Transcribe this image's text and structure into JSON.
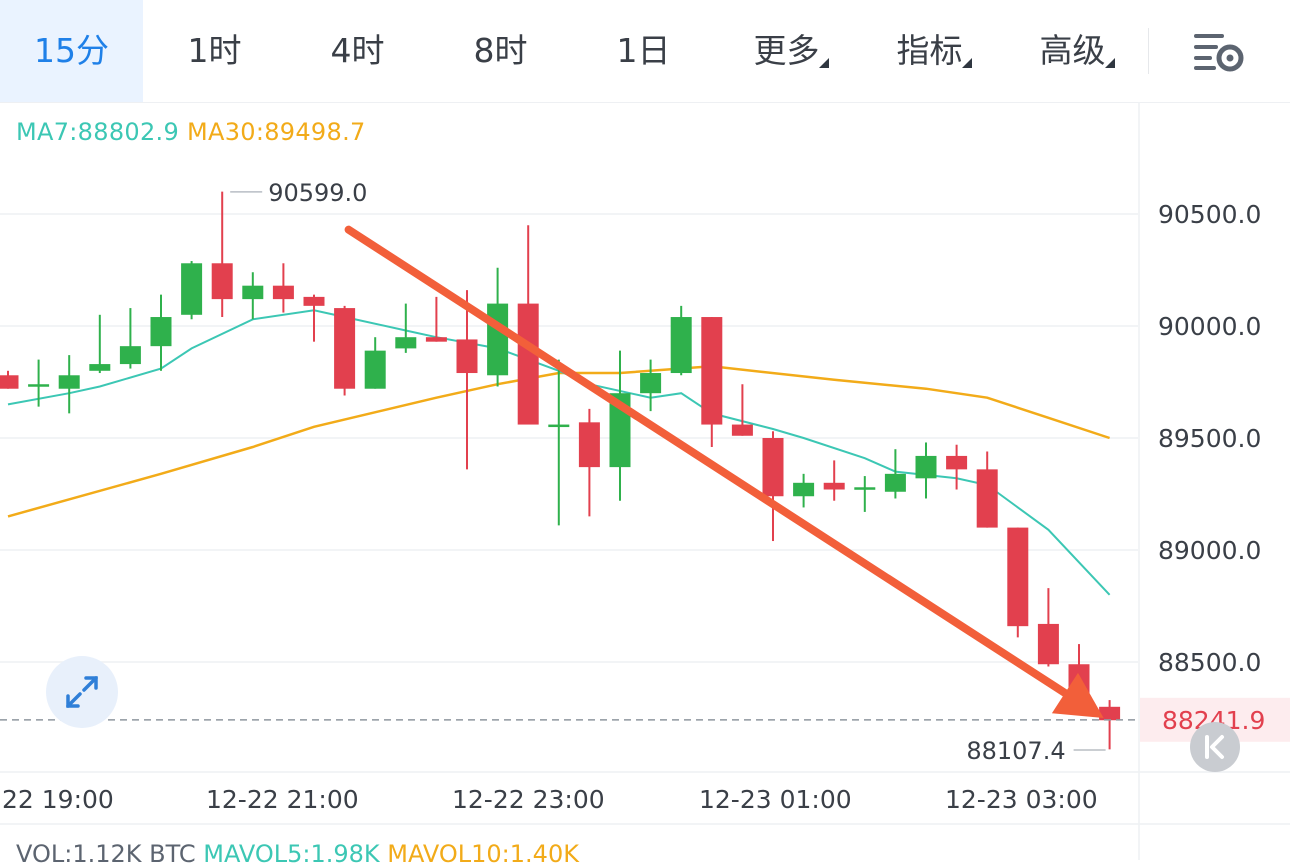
{
  "toolbar": {
    "tabs": [
      {
        "label": "15分",
        "active": true
      },
      {
        "label": "1时",
        "active": false
      },
      {
        "label": "4时",
        "active": false
      },
      {
        "label": "8时",
        "active": false
      },
      {
        "label": "1日",
        "active": false
      },
      {
        "label": "更多",
        "active": false,
        "dropdown": true
      },
      {
        "label": "指标",
        "active": false,
        "dropdown": true
      },
      {
        "label": "高级",
        "active": false,
        "dropdown": true
      }
    ],
    "settings_icon": "chart-settings-icon"
  },
  "ma_legend": {
    "ma7": "MA7:88802.9",
    "ma30": "MA30:89498.7"
  },
  "vol_legend": {
    "vol": "VOL:1.12K BTC",
    "mavol5": "MAVOL5:1.98K",
    "mavol10": "MAVOL10:1.40K"
  },
  "colors": {
    "up": "#2fb14c",
    "down": "#e2404e",
    "ma7": "#3cc7b4",
    "ma30": "#f2ab19",
    "active_tab": "#1f80e8",
    "annotation_arrow": "#f25f3a",
    "current_price_label": "#e2404e"
  },
  "chart_data": {
    "type": "candlestick",
    "interval": "15分",
    "y_ticks": [
      "90500.0",
      "90000.0",
      "89500.0",
      "89000.0",
      "88500.0"
    ],
    "y_tick_values": [
      90500,
      90000,
      89500,
      89000,
      88500
    ],
    "x_ticks": [
      "22 19:00",
      "12-22 21:00",
      "12-22 23:00",
      "12-23 01:00",
      "12-23 03:00"
    ],
    "high_marker": {
      "label": "90599.0",
      "value": 90599.0
    },
    "low_marker": {
      "label": "88107.4",
      "value": 88107.4
    },
    "current_price": {
      "label": "88241.9",
      "value": 88241.9
    },
    "candles": [
      {
        "o": 89780,
        "h": 89800,
        "l": 89720,
        "c": 89720
      },
      {
        "o": 89740,
        "h": 89850,
        "l": 89640,
        "c": 89740
      },
      {
        "o": 89720,
        "h": 89870,
        "l": 89610,
        "c": 89780
      },
      {
        "o": 89800,
        "h": 90050,
        "l": 89790,
        "c": 89830
      },
      {
        "o": 89830,
        "h": 90080,
        "l": 89810,
        "c": 89910
      },
      {
        "o": 89910,
        "h": 90140,
        "l": 89800,
        "c": 90040
      },
      {
        "o": 90050,
        "h": 90290,
        "l": 90030,
        "c": 90280
      },
      {
        "o": 90280,
        "h": 90600,
        "l": 90040,
        "c": 90120
      },
      {
        "o": 90120,
        "h": 90240,
        "l": 90030,
        "c": 90180
      },
      {
        "o": 90180,
        "h": 90280,
        "l": 90060,
        "c": 90120
      },
      {
        "o": 90130,
        "h": 90140,
        "l": 89930,
        "c": 90090
      },
      {
        "o": 90080,
        "h": 90090,
        "l": 89690,
        "c": 89720
      },
      {
        "o": 89720,
        "h": 89950,
        "l": 89720,
        "c": 89890
      },
      {
        "o": 89900,
        "h": 90100,
        "l": 89880,
        "c": 89950
      },
      {
        "o": 89950,
        "h": 90130,
        "l": 89930,
        "c": 89930
      },
      {
        "o": 89940,
        "h": 90160,
        "l": 89360,
        "c": 89790
      },
      {
        "o": 89780,
        "h": 90260,
        "l": 89730,
        "c": 90100
      },
      {
        "o": 90100,
        "h": 90450,
        "l": 89560,
        "c": 89560
      },
      {
        "o": 89560,
        "h": 89850,
        "l": 89110,
        "c": 89560
      },
      {
        "o": 89570,
        "h": 89630,
        "l": 89150,
        "c": 89370
      },
      {
        "o": 89370,
        "h": 89890,
        "l": 89220,
        "c": 89700
      },
      {
        "o": 89700,
        "h": 89850,
        "l": 89620,
        "c": 89790
      },
      {
        "o": 89790,
        "h": 90090,
        "l": 89780,
        "c": 90040
      },
      {
        "o": 90040,
        "h": 90040,
        "l": 89460,
        "c": 89560
      },
      {
        "o": 89560,
        "h": 89740,
        "l": 89510,
        "c": 89510
      },
      {
        "o": 89500,
        "h": 89530,
        "l": 89040,
        "c": 89240
      },
      {
        "o": 89240,
        "h": 89340,
        "l": 89190,
        "c": 89300
      },
      {
        "o": 89300,
        "h": 89400,
        "l": 89220,
        "c": 89270
      },
      {
        "o": 89280,
        "h": 89330,
        "l": 89170,
        "c": 89280
      },
      {
        "o": 89260,
        "h": 89450,
        "l": 89230,
        "c": 89340
      },
      {
        "o": 89320,
        "h": 89480,
        "l": 89230,
        "c": 89420
      },
      {
        "o": 89420,
        "h": 89470,
        "l": 89270,
        "c": 89360
      },
      {
        "o": 89360,
        "h": 89440,
        "l": 89100,
        "c": 89100
      },
      {
        "o": 89100,
        "h": 89100,
        "l": 88610,
        "c": 88660
      },
      {
        "o": 88670,
        "h": 88830,
        "l": 88480,
        "c": 88490
      },
      {
        "o": 88490,
        "h": 88580,
        "l": 88320,
        "c": 88320
      },
      {
        "o": 88300,
        "h": 88330,
        "l": 88110,
        "c": 88240
      }
    ],
    "ma7": [
      {
        "i": 0,
        "v": 89650
      },
      {
        "i": 2,
        "v": 89700
      },
      {
        "i": 3,
        "v": 89730
      },
      {
        "i": 5,
        "v": 89810
      },
      {
        "i": 6,
        "v": 89900
      },
      {
        "i": 8,
        "v": 90030
      },
      {
        "i": 10,
        "v": 90070
      },
      {
        "i": 11,
        "v": 90040
      },
      {
        "i": 13,
        "v": 89980
      },
      {
        "i": 14,
        "v": 89950
      },
      {
        "i": 16,
        "v": 89900
      },
      {
        "i": 18,
        "v": 89800
      },
      {
        "i": 19,
        "v": 89740
      },
      {
        "i": 21,
        "v": 89680
      },
      {
        "i": 22,
        "v": 89700
      },
      {
        "i": 23,
        "v": 89610
      },
      {
        "i": 25,
        "v": 89540
      },
      {
        "i": 26,
        "v": 89500
      },
      {
        "i": 28,
        "v": 89410
      },
      {
        "i": 29,
        "v": 89350
      },
      {
        "i": 31,
        "v": 89320
      },
      {
        "i": 32,
        "v": 89290
      },
      {
        "i": 34,
        "v": 89090
      },
      {
        "i": 36,
        "v": 88800
      }
    ],
    "ma30": [
      {
        "i": 0,
        "v": 89150
      },
      {
        "i": 5,
        "v": 89340
      },
      {
        "i": 8,
        "v": 89460
      },
      {
        "i": 10,
        "v": 89550
      },
      {
        "i": 14,
        "v": 89680
      },
      {
        "i": 16,
        "v": 89740
      },
      {
        "i": 18,
        "v": 89790
      },
      {
        "i": 20,
        "v": 89790
      },
      {
        "i": 23,
        "v": 89820
      },
      {
        "i": 27,
        "v": 89760
      },
      {
        "i": 30,
        "v": 89720
      },
      {
        "i": 32,
        "v": 89680
      },
      {
        "i": 34,
        "v": 89590
      },
      {
        "i": 36,
        "v": 89500
      }
    ],
    "annotation": {
      "type": "arrow",
      "from": {
        "i": 11,
        "v": 90430
      },
      "to": {
        "i": 36,
        "v": 88250
      }
    }
  }
}
